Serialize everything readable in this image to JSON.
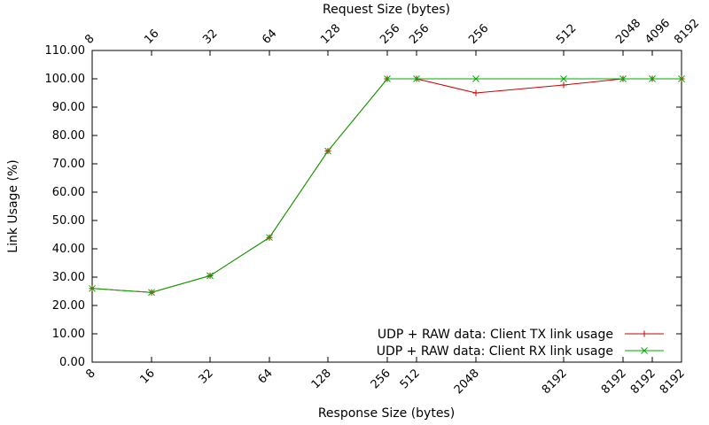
{
  "chart_data": {
    "type": "line",
    "xlabel": "Response Size (bytes)",
    "x2label": "Request Size (bytes)",
    "ylabel": "Link Usage (%)",
    "ylim": [
      0,
      110
    ],
    "yticks": [
      "0.00",
      "10.00",
      "20.00",
      "30.00",
      "40.00",
      "50.00",
      "60.00",
      "70.00",
      "80.00",
      "90.00",
      "100.00",
      "110.00"
    ],
    "bottom_ticks": [
      "8",
      "16",
      "32",
      "64",
      "128",
      "256",
      "512",
      "2048",
      "8192",
      "8192",
      "8192",
      "8192"
    ],
    "top_ticks": [
      "8",
      "16",
      "32",
      "64",
      "128",
      "256",
      "256",
      "256",
      "512",
      "2048",
      "4096",
      "8192"
    ],
    "x_positions": [
      1,
      2,
      3,
      4,
      5,
      6,
      7,
      8,
      9,
      10,
      11,
      12
    ],
    "grid": false,
    "legend_position": "bottom-right",
    "series": [
      {
        "name": "UDP + RAW data: Client TX link usage",
        "color": "#cc0000",
        "marker": "plus",
        "values": [
          26.0,
          24.6,
          30.5,
          44.0,
          74.5,
          100.0,
          100.0,
          95.0,
          97.8,
          100.0,
          100.0,
          100.0
        ]
      },
      {
        "name": "UDP + RAW data: Client RX link usage",
        "color": "#00aa00",
        "marker": "cross",
        "values": [
          26.0,
          24.6,
          30.5,
          44.0,
          74.5,
          100.0,
          100.0,
          100.0,
          100.0,
          100.0,
          100.0,
          100.0
        ]
      }
    ]
  }
}
